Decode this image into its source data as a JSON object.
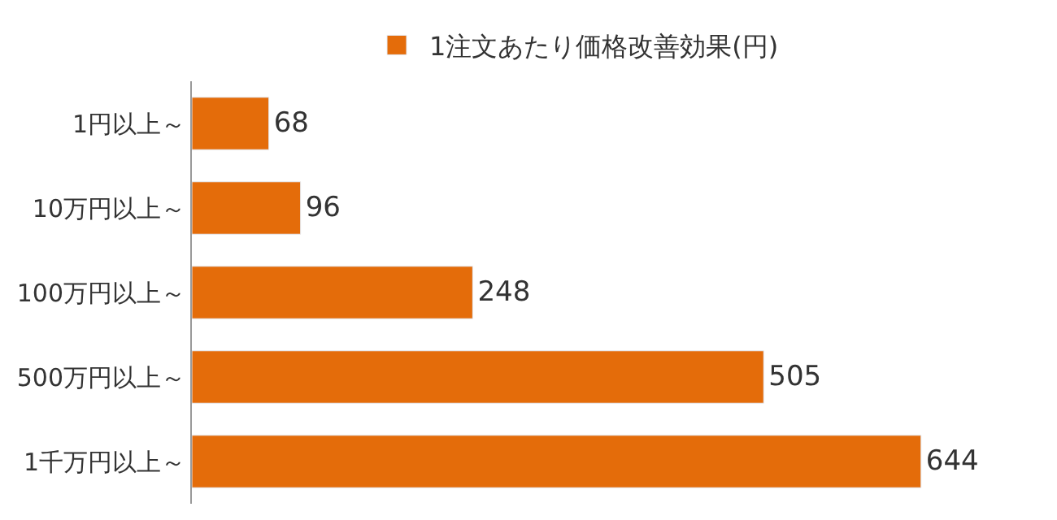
{
  "chart_data": {
    "type": "bar",
    "orientation": "horizontal",
    "categories": [
      "1円以上～",
      "10万円以上～",
      "100万円以上～",
      "500万円以上～",
      "1千万円以上～"
    ],
    "series": [
      {
        "name": "1注文あたり価格改善効果(円)",
        "color": "#e46c0a",
        "values": [
          68,
          96,
          248,
          505,
          644
        ]
      }
    ],
    "data_labels": true,
    "legend": "top"
  }
}
